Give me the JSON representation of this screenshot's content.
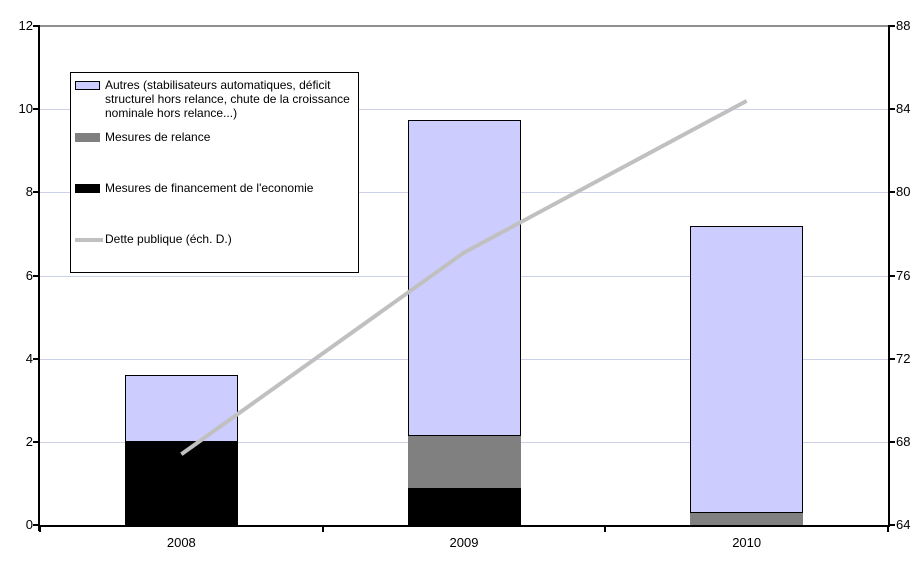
{
  "ui": {
    "background_color": "#ffffff",
    "gridline_color": "#ccd1e8",
    "top_border_color": "#8f8f8f",
    "axis_color": "#000000"
  },
  "chart_data": {
    "type": "bar",
    "subtype": "stacked-bars-with-line-dual-axis",
    "title": "",
    "xlabel": "",
    "ylabel": "",
    "grid": true,
    "legend_position": "top-left-inside",
    "categories": [
      "2008",
      "2009",
      "2010"
    ],
    "series": [
      {
        "name": "Mesures de financement de l'economie",
        "type": "bar",
        "stack_order": 1,
        "color": "#000000",
        "axis": "left",
        "values": [
          2.0,
          0.9,
          0
        ]
      },
      {
        "name": "Mesures de relance",
        "type": "bar",
        "stack_order": 2,
        "color": "#808080",
        "axis": "left",
        "values": [
          0,
          1.25,
          0.3
        ]
      },
      {
        "name": "Autres (stabilisateurs automatiques, déficit structurel hors relance, chute de la croissance nominale hors relance...)",
        "type": "bar",
        "stack_order": 3,
        "color": "#ccccff",
        "border_color": "#000000",
        "axis": "left",
        "values": [
          1.6,
          7.6,
          6.9
        ]
      },
      {
        "name": "Dette publique (éch. D.)",
        "type": "line",
        "color": "#c0c0c0",
        "axis": "right",
        "values": [
          67.4,
          77.1,
          84.4
        ]
      }
    ],
    "stacked_totals": [
      3.6,
      9.75,
      7.2
    ],
    "left_axis": {
      "min": 0,
      "max": 12,
      "tick_values": [
        0,
        2,
        4,
        6,
        8,
        10,
        12
      ],
      "tick_labels": [
        "0",
        "2",
        "4",
        "6",
        "8",
        "10",
        "12"
      ]
    },
    "right_axis": {
      "min": 64,
      "max": 88,
      "tick_values": [
        64,
        68,
        72,
        76,
        80,
        84,
        88
      ],
      "tick_labels": [
        "64",
        "68",
        "72",
        "76",
        "80",
        "84",
        "88"
      ]
    }
  },
  "legend": {
    "items": [
      {
        "label": "Autres (stabilisateurs automatiques, déficit structurel hors relance, chute de la croissance nominale hors relance...)",
        "swatch": "bar",
        "color": "#ccccff",
        "border": "#000000"
      },
      {
        "label": "Mesures de relance",
        "swatch": "bar",
        "color": "#808080",
        "border": null
      },
      {
        "label": "Mesures de financement de l'economie",
        "swatch": "bar",
        "color": "#000000",
        "border": null
      },
      {
        "label": "Dette publique (éch. D.)",
        "swatch": "line",
        "color": "#c0c0c0",
        "border": null
      }
    ]
  }
}
